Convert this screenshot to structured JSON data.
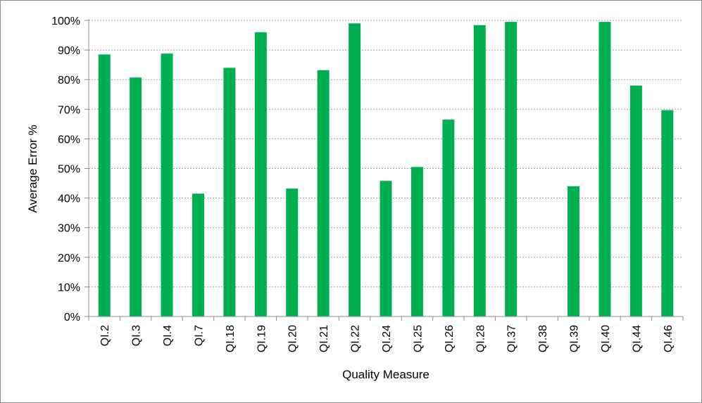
{
  "chart_data": {
    "type": "bar",
    "xlabel": "Quality Measure",
    "ylabel": "Average Error %",
    "ylim": [
      0,
      100
    ],
    "y_ticks": [
      "0%",
      "10%",
      "20%",
      "30%",
      "40%",
      "50%",
      "60%",
      "70%",
      "80%",
      "90%",
      "100%"
    ],
    "grid": "horizontal dashed",
    "categories": [
      "QI.2",
      "QI.3",
      "QI.4",
      "QI.7",
      "QI.18",
      "QI.19",
      "QI.20",
      "QI.21",
      "QI.22",
      "QI.24",
      "QI.25",
      "QI.26",
      "QI.28",
      "QI.37",
      "QI.38",
      "QI.39",
      "QI.40",
      "QI.44",
      "QI.46"
    ],
    "values": [
      88.5,
      80.7,
      88.8,
      41.5,
      84.0,
      96.0,
      43.2,
      83.2,
      99.0,
      45.8,
      50.5,
      66.5,
      98.4,
      99.5,
      0,
      44.0,
      99.5,
      78.0,
      69.7
    ],
    "bar_color": "#00b050"
  }
}
